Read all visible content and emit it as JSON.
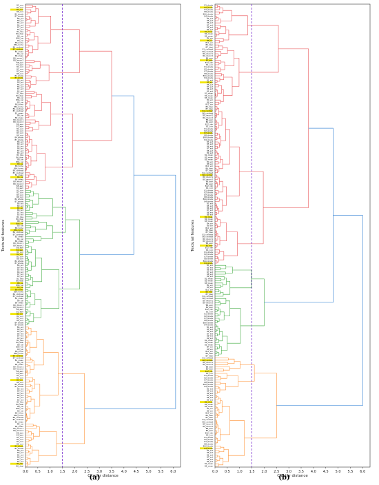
{
  "chart_data": [
    {
      "type": "dendrogram",
      "panel_label": "(a)",
      "title": "",
      "xlabel": "Cluster distance",
      "ylabel": "Textural features",
      "xlim": [
        0.0,
        6.3
      ],
      "xticks": [
        "0.0",
        "0.5",
        "1.0",
        "1.5",
        "2.0",
        "2.5",
        "3.0",
        "3.5",
        "4.0",
        "4.5",
        "5.0",
        "5.5",
        "6.0"
      ],
      "cut_distance": 1.5,
      "cut_line_color": "#7b2fd0",
      "leaf_count_estimate": 210,
      "leaf_labels_visible_sample": [
        "B1_corr",
        "B2_corr",
        "B3_corr",
        "B8_corr",
        "B4_shade",
        "B7_shade",
        "B8_ent",
        "B9_ent",
        "B5_ent",
        "B6_ent",
        "B7_ent",
        "B3_ent",
        "B1_diss",
        "B6_dissi",
        "B8_var",
        "B8A_var",
        "B3_var",
        "B8_homo",
        "B8A_homo",
        "B6_contrast",
        "B7_contrast",
        "B1_mean",
        "B4_var",
        "B9_mean",
        "B9_imcorr1",
        "B9_imcorr2",
        "B8_asm",
        "B1_asm"
      ],
      "highlighted_leaf_color": "#f2e600",
      "clusters": [
        {
          "color": "#e8474b",
          "leaf_range": [
            0,
            84
          ],
          "merge_distance": 3.5
        },
        {
          "color": "#3aa83a",
          "leaf_range": [
            84,
            146
          ],
          "merge_distance": 2.2
        },
        {
          "color": "#ff8c2a",
          "leaf_range": [
            146,
            210
          ],
          "merge_distance": 2.4
        }
      ],
      "root": {
        "color": "#4a90d9",
        "top_merge_distance": 6.1,
        "second_merge_distance": 4.4
      }
    },
    {
      "type": "dendrogram",
      "panel_label": "(b)",
      "title": "",
      "xlabel": "Cluster distance",
      "ylabel": "Textural features",
      "xlim": [
        0.0,
        6.3
      ],
      "xticks": [
        "0.0",
        "0.5",
        "1.0",
        "1.5",
        "2.0",
        "2.5",
        "3.0",
        "3.5",
        "4.0",
        "4.5",
        "5.0",
        "5.5",
        "6.0"
      ],
      "cut_distance": 1.5,
      "cut_line_color": "#7b2fd0",
      "leaf_count_estimate": 210,
      "leaf_labels_visible_sample": [
        "B1_shade",
        "B2_shade",
        "B7_shade",
        "B8_shade",
        "B8A_shade",
        "B4_shade",
        "B3_ent",
        "B5_ent",
        "B6_ent",
        "B7_ent",
        "B8_ent",
        "B9_ent",
        "B1_mean",
        "B2_mean",
        "B3_mean",
        "B4_var",
        "B8_var",
        "B11_var",
        "B6_dissi",
        "B7_dissi",
        "B1_contrast",
        "B6_contrast",
        "B9_imcorr1",
        "B9_imcorr2",
        "B8_asm",
        "B2_asm",
        "B12_idm",
        "B1_corr"
      ],
      "highlighted_leaf_color": "#f2e600",
      "clusters": [
        {
          "color": "#e8474b",
          "leaf_range": [
            0,
            118
          ],
          "merge_distance": 3.8
        },
        {
          "color": "#3aa83a",
          "leaf_range": [
            118,
            160
          ],
          "merge_distance": 2.0
        },
        {
          "color": "#ff8c2a",
          "leaf_range": [
            160,
            210
          ],
          "merge_distance": 2.5
        }
      ],
      "root": {
        "color": "#4a90d9",
        "top_merge_distance": 6.0,
        "second_merge_distance": 4.8
      }
    }
  ]
}
